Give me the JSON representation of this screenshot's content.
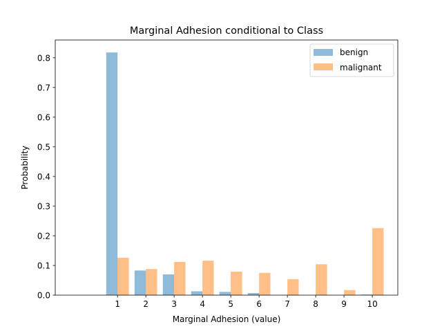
{
  "chart_data": {
    "type": "bar",
    "title": "Marginal Adhesion conditional to Class",
    "xlabel": "Marginal Adhesion (value)",
    "ylabel": "Probability",
    "categories": [
      "1",
      "2",
      "3",
      "4",
      "5",
      "6",
      "7",
      "8",
      "9",
      "10"
    ],
    "x": [
      1,
      2,
      3,
      4,
      5,
      6,
      7,
      8,
      9,
      10
    ],
    "xlim": [
      -1.2,
      10.9
    ],
    "ylim": [
      0,
      0.86
    ],
    "yticks": [
      "0.0",
      "0.1",
      "0.2",
      "0.3",
      "0.4",
      "0.5",
      "0.6",
      "0.7",
      "0.8"
    ],
    "ytick_values": [
      0.0,
      0.1,
      0.2,
      0.3,
      0.4,
      0.5,
      0.6,
      0.7,
      0.8
    ],
    "series": [
      {
        "name": "benign",
        "color": "#1f77b4",
        "alpha": 0.5,
        "values": [
          0.818,
          0.083,
          0.07,
          0.013,
          0.011,
          0.007,
          0.0,
          0.0,
          0.0,
          0.002
        ]
      },
      {
        "name": "malignant",
        "color": "#ff7f0e",
        "alpha": 0.5,
        "values": [
          0.126,
          0.088,
          0.112,
          0.116,
          0.079,
          0.075,
          0.054,
          0.104,
          0.017,
          0.226
        ]
      }
    ],
    "legend": "top-right",
    "grid": false
  }
}
